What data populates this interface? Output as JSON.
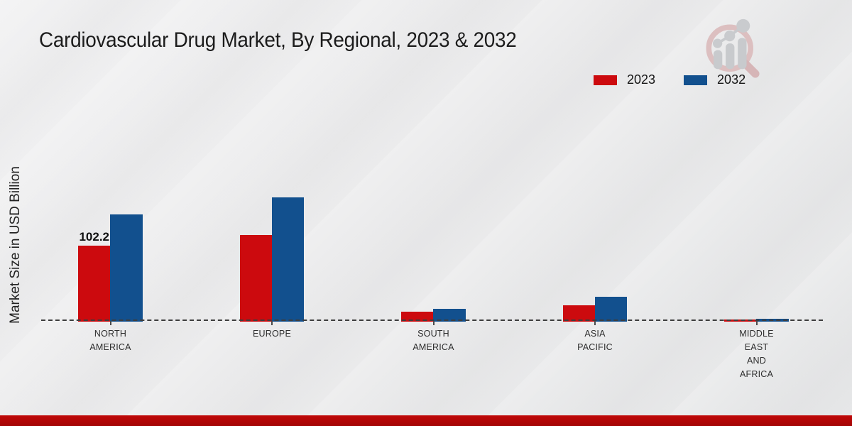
{
  "title": "Cardiovascular Drug Market, By Regional, 2023 & 2032",
  "y_axis_label": "Market Size in USD Billion",
  "colors": {
    "series_2023": "#cc0a0e",
    "series_2032": "#12508e",
    "footer_bar": "#b30606",
    "baseline": "#3c3c3c"
  },
  "legend": {
    "position": "top-right",
    "items": [
      {
        "label": "2023",
        "color": "#cc0a0e"
      },
      {
        "label": "2032",
        "color": "#12508e"
      }
    ]
  },
  "logo": {
    "name": "market-research-magnifier-logo"
  },
  "chart_data": {
    "type": "bar",
    "title": "Cardiovascular Drug Market, By Regional, 2023 & 2032",
    "xlabel": "",
    "ylabel": "Market Size in USD Billion",
    "categories": [
      "North America",
      "Europe",
      "South America",
      "Asia Pacific",
      "Middle East and Africa"
    ],
    "category_labels": [
      [
        "NORTH",
        "AMERICA"
      ],
      [
        "EUROPE"
      ],
      [
        "SOUTH",
        "AMERICA"
      ],
      [
        "ASIA",
        "PACIFIC"
      ],
      [
        "MIDDLE",
        "EAST",
        "AND",
        "AFRICA"
      ]
    ],
    "series": [
      {
        "name": "2023",
        "color": "#cc0a0e",
        "values": [
          102.2,
          116.4,
          12.9,
          21.9,
          2.4
        ]
      },
      {
        "name": "2032",
        "color": "#12508e",
        "values": [
          144.4,
          167.3,
          17.6,
          33.5,
          3.8
        ]
      }
    ],
    "data_labels": [
      {
        "series": "2023",
        "category": "North America",
        "text": "102.2"
      }
    ],
    "ylim": [
      0,
      175
    ],
    "grid": false,
    "baseline_style": "dashed",
    "legend_position": "top-right"
  }
}
